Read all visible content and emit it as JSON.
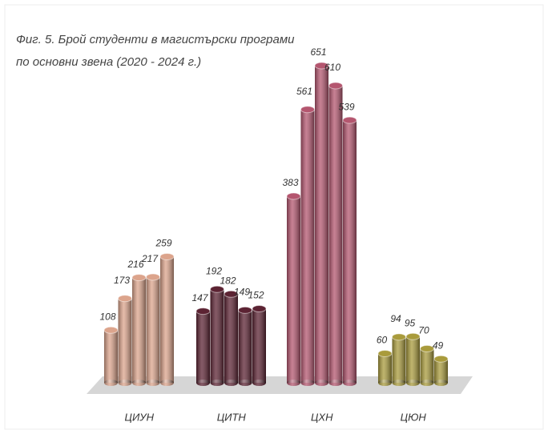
{
  "chart_data": {
    "type": "bar",
    "title": [
      "Фиг. 5. Брой студенти в магистърски програми",
      "по основни звена (2020 - 2024 г.)"
    ],
    "series": [
      {
        "name": "ЦИУН",
        "color": "#dca48c",
        "values": [
          108,
          173,
          216,
          217,
          259
        ]
      },
      {
        "name": "ЦИТН",
        "color": "#5c2333",
        "values": [
          147,
          192,
          182,
          149,
          152
        ]
      },
      {
        "name": "ЦХН",
        "color": "#b4566f",
        "values": [
          383,
          561,
          651,
          610,
          539
        ]
      },
      {
        "name": "ЦЮН",
        "color": "#a99b3c",
        "values": [
          60,
          94,
          95,
          70,
          49
        ]
      }
    ]
  }
}
